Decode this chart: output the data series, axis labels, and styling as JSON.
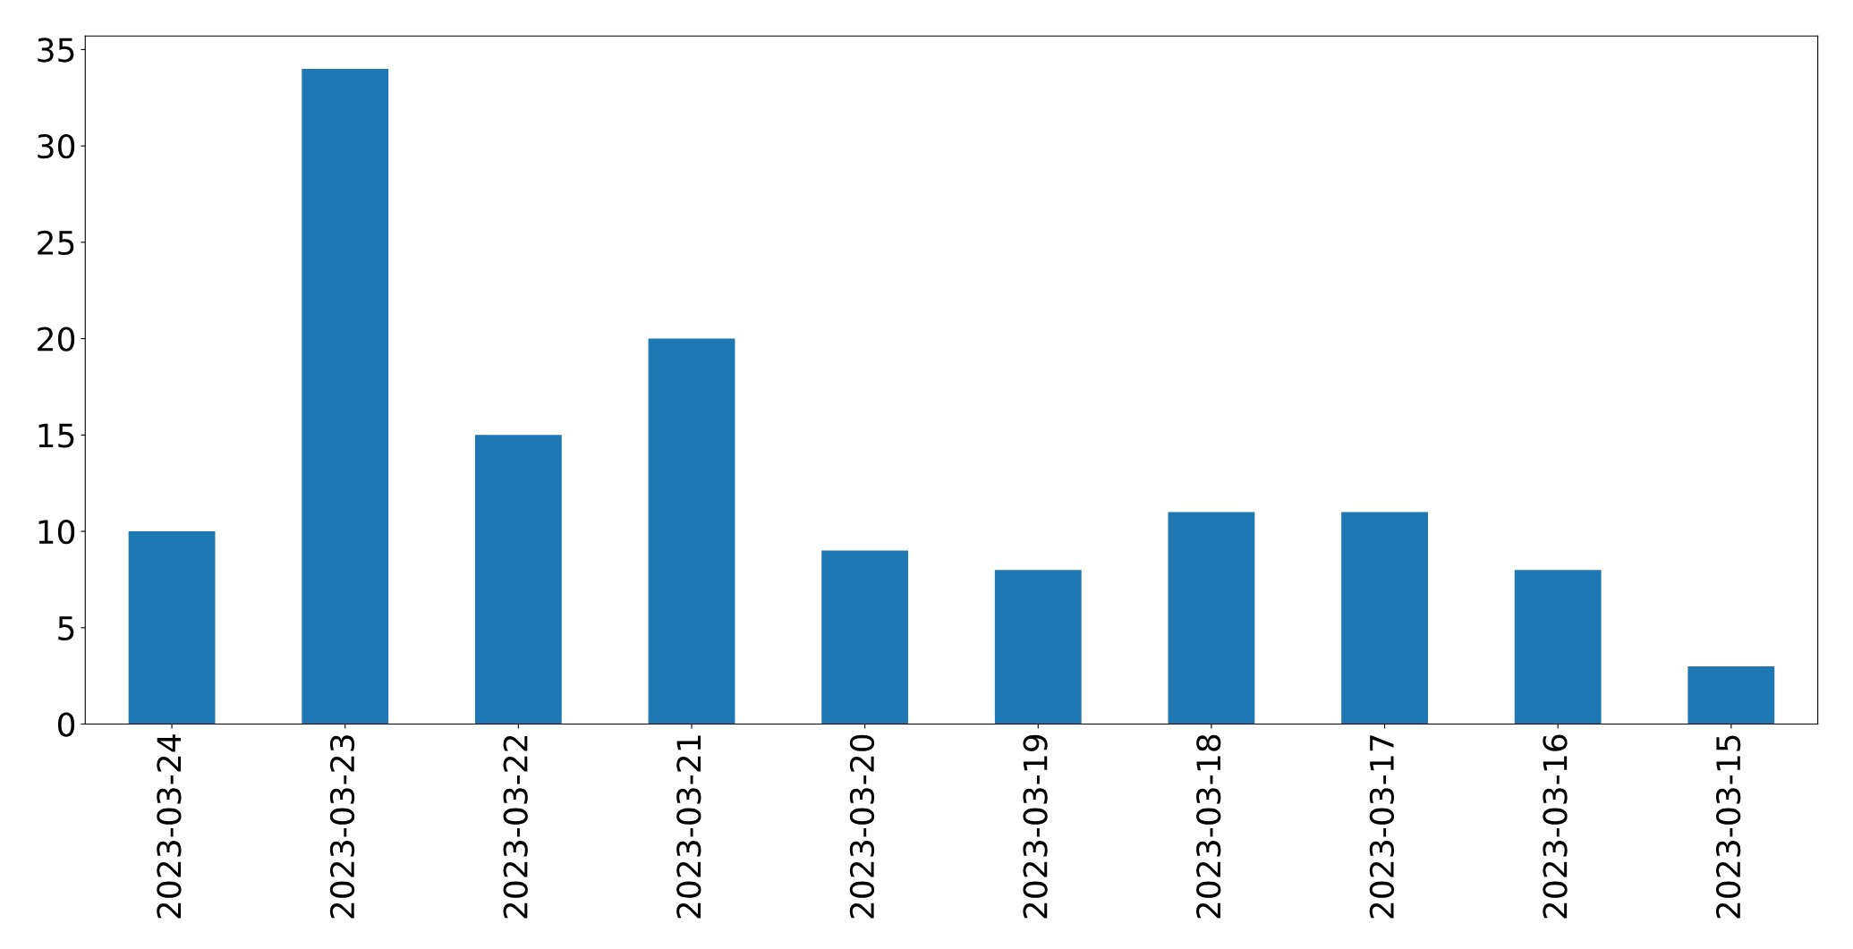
{
  "chart_data": {
    "type": "bar",
    "categories": [
      "2023-03-24",
      "2023-03-23",
      "2023-03-22",
      "2023-03-21",
      "2023-03-20",
      "2023-03-19",
      "2023-03-18",
      "2023-03-17",
      "2023-03-16",
      "2023-03-15"
    ],
    "values": [
      10,
      34,
      15,
      20,
      9,
      8,
      11,
      11,
      8,
      3
    ],
    "color": "#1f77b4",
    "ylim": [
      0,
      35.7
    ],
    "yticks": [
      0,
      5,
      10,
      15,
      20,
      25,
      30,
      35
    ],
    "grid": false
  }
}
